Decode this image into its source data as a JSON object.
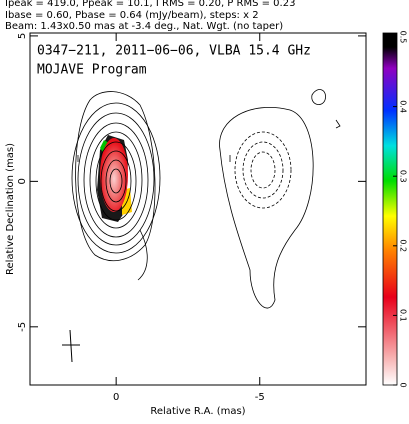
{
  "chart_data": {
    "type": "contour",
    "annotations": [
      "Ipeak = 419.0, Ppeak = 10.1, I RMS = 0.20, P RMS = 0.23",
      "Ibase = 0.60, Pbase = 0.64 (mJy/beam), steps: x 2",
      "Beam: 1.43x0.50 mas at -3.4 deg., Nat. Wgt. (no taper)"
    ],
    "title": "0347−211, 2011−06−06, VLBA 15.4 GHz",
    "subtitle": "MOJAVE Program",
    "xlabel": "Relative R.A. (mas)",
    "ylabel": "Relative Declination (mas)",
    "xlim": [
      3.0,
      -8.7
    ],
    "xticks": [
      0,
      -5
    ],
    "ylim": [
      -7.0,
      5.1
    ],
    "yticks": [
      5,
      0,
      -5
    ],
    "colorbar": {
      "lim": [
        0,
        0.5
      ],
      "ticks": [
        0,
        0.1,
        0.2,
        0.3,
        0.4,
        0.5
      ]
    }
  }
}
